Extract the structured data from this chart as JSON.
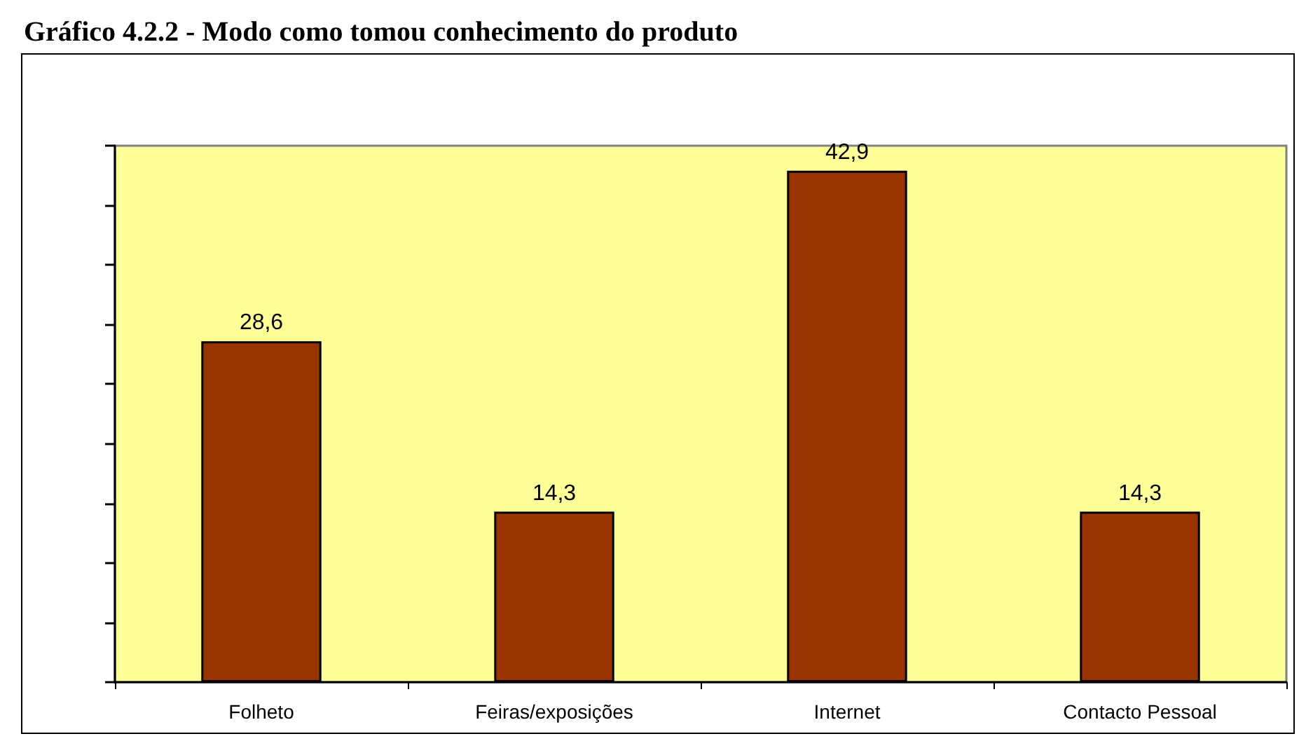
{
  "chart_data": {
    "type": "bar",
    "title": "Gráfico 4.2.2 - Modo como tomou conhecimento do produto",
    "categories": [
      "Folheto",
      "Feiras/exposições",
      "Internet",
      "Contacto Pessoal"
    ],
    "values": [
      28.6,
      14.3,
      42.9,
      14.3
    ],
    "value_labels": [
      "28,6",
      "14,3",
      "42,9",
      "14,3"
    ],
    "color": "#993300",
    "tick_labels": "x",
    "grid": false
  }
}
